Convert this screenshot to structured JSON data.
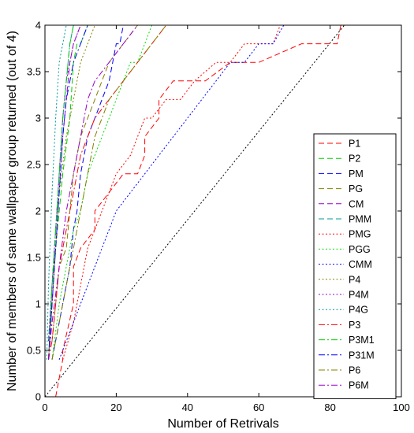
{
  "chart_data": {
    "type": "line",
    "title": "",
    "xlabel": "Number of Retrivals",
    "ylabel": "Number of members of same wallpaper group returned (out of 4)",
    "xlim": [
      0,
      100
    ],
    "ylim": [
      0,
      4
    ],
    "x_ticks": [
      0,
      20,
      40,
      60,
      80,
      100
    ],
    "y_ticks": [
      0,
      0.5,
      1,
      1.5,
      2,
      2.5,
      3,
      3.5,
      4
    ],
    "x_tick_labels": [
      "0",
      "20",
      "40",
      "60",
      "80",
      "100"
    ],
    "y_tick_labels": [
      "0",
      "0.5",
      "1",
      "1.5",
      "2",
      "2.5",
      "3",
      "3.5",
      "4"
    ],
    "grid": false,
    "legend_position": "right",
    "reference_line": {
      "x": [
        0,
        84
      ],
      "y": [
        0,
        4
      ],
      "color": "#000000",
      "style": "dotted"
    },
    "series": [
      {
        "name": "P1",
        "color": "#ff0000",
        "style": "dashed",
        "x": [
          3,
          5,
          5,
          8,
          8,
          10,
          10,
          14,
          14,
          18,
          18,
          22,
          22,
          26,
          26,
          28,
          28,
          32,
          32,
          36,
          36,
          45,
          45,
          52,
          52,
          60,
          60,
          72,
          72,
          82,
          82,
          83
        ],
        "y": [
          0,
          0.4,
          0.5,
          1,
          1.4,
          1.6,
          1.6,
          1.8,
          2.0,
          2.2,
          2.2,
          2.4,
          2.4,
          2.4,
          2.4,
          2.6,
          2.8,
          3.0,
          3.2,
          3.4,
          3.4,
          3.4,
          3.4,
          3.6,
          3.6,
          3.6,
          3.6,
          3.8,
          3.8,
          3.8,
          3.8,
          4.0
        ]
      },
      {
        "name": "P2",
        "color": "#00cc00",
        "style": "dashed",
        "x": [
          1,
          2,
          3,
          4,
          5,
          7,
          8,
          9,
          10,
          12,
          14
        ],
        "y": [
          0.4,
          1.2,
          1.6,
          2.0,
          2.4,
          3.0,
          3.6,
          3.8,
          3.8,
          4.0,
          4.0
        ]
      },
      {
        "name": "PM",
        "color": "#0000ff",
        "style": "dashed",
        "x": [
          2,
          4,
          5,
          7,
          8,
          9,
          10,
          11,
          12,
          14,
          16,
          18,
          19,
          20,
          21,
          22,
          24
        ],
        "y": [
          0.4,
          0.8,
          1.0,
          1.4,
          1.8,
          2.0,
          2.4,
          2.6,
          2.8,
          3.0,
          3.2,
          3.4,
          3.6,
          3.8,
          3.8,
          4.0,
          4.0
        ]
      },
      {
        "name": "PG",
        "color": "#808000",
        "style": "dashed",
        "x": [
          2,
          3,
          4,
          6,
          7,
          8,
          10,
          12,
          14,
          16,
          18,
          22,
          26,
          30
        ],
        "y": [
          0.6,
          1.0,
          1.4,
          1.6,
          2.0,
          2.4,
          2.8,
          3.0,
          3.2,
          3.4,
          3.6,
          3.8,
          4.0,
          4.0
        ]
      },
      {
        "name": "CM",
        "color": "#9900cc",
        "style": "dashed",
        "x": [
          1,
          2,
          3,
          4,
          5,
          6,
          7,
          8,
          10,
          12
        ],
        "y": [
          0.4,
          1.0,
          1.6,
          2.2,
          2.8,
          3.2,
          3.6,
          3.8,
          4.0,
          4.0
        ]
      },
      {
        "name": "PMM",
        "color": "#009999",
        "style": "dashed",
        "x": [
          1,
          2,
          3,
          4,
          5,
          6,
          7,
          8,
          9
        ],
        "y": [
          0.6,
          1.2,
          1.8,
          2.4,
          3.0,
          3.4,
          3.8,
          4.0,
          4.0
        ]
      },
      {
        "name": "PMG",
        "color": "#ff0000",
        "style": "dotted",
        "x": [
          5,
          8,
          10,
          12,
          14,
          16,
          18,
          20,
          24,
          26,
          28,
          30,
          34,
          38,
          42,
          48,
          52,
          56,
          60,
          64,
          66,
          68
        ],
        "y": [
          0.4,
          0.8,
          1.2,
          1.6,
          1.8,
          2.0,
          2.2,
          2.4,
          2.6,
          2.8,
          3.0,
          3.0,
          3.2,
          3.2,
          3.4,
          3.6,
          3.6,
          3.8,
          3.8,
          3.8,
          4.0,
          4.0
        ]
      },
      {
        "name": "PGG",
        "color": "#00dd00",
        "style": "dotted",
        "x": [
          2,
          4,
          6,
          8,
          10,
          12,
          14,
          16,
          18,
          20,
          22,
          24,
          26,
          28,
          30,
          34
        ],
        "y": [
          0.4,
          1.0,
          1.4,
          1.8,
          2.0,
          2.4,
          2.6,
          2.8,
          3.0,
          3.2,
          3.4,
          3.6,
          3.6,
          3.8,
          4.0,
          4.0
        ]
      },
      {
        "name": "CMM",
        "color": "#0000ff",
        "style": "dotted",
        "x": [
          4,
          8,
          10,
          12,
          14,
          16,
          18,
          20,
          24,
          28,
          32,
          36,
          40,
          44,
          48,
          52,
          56,
          60,
          64,
          67,
          68
        ],
        "y": [
          0.4,
          0.8,
          1.0,
          1.2,
          1.4,
          1.6,
          1.8,
          2.0,
          2.2,
          2.4,
          2.6,
          2.8,
          3.0,
          3.2,
          3.4,
          3.6,
          3.6,
          3.8,
          3.8,
          4.0,
          4.0
        ]
      },
      {
        "name": "P4",
        "color": "#808000",
        "style": "dotted",
        "x": [
          1,
          2,
          3,
          4,
          6,
          8,
          10,
          12,
          14,
          16
        ],
        "y": [
          0.4,
          1.0,
          1.6,
          2.2,
          2.8,
          3.2,
          3.6,
          3.8,
          4.0,
          4.0
        ]
      },
      {
        "name": "P4M",
        "color": "#9900cc",
        "style": "dotted",
        "x": [
          1,
          2,
          3,
          4,
          5,
          6,
          7,
          8,
          10,
          12
        ],
        "y": [
          0.6,
          1.2,
          1.8,
          2.4,
          3.0,
          3.4,
          3.6,
          3.8,
          4.0,
          4.0
        ]
      },
      {
        "name": "P4G",
        "color": "#009999",
        "style": "dotted",
        "x": [
          0.5,
          1,
          2,
          3,
          4,
          5,
          6,
          7,
          8
        ],
        "y": [
          0.4,
          1.2,
          2.2,
          3.0,
          3.6,
          3.8,
          4.0,
          4.0,
          4.0
        ]
      },
      {
        "name": "P3",
        "color": "#ff0000",
        "style": "dashdot",
        "x": [
          1,
          2,
          3,
          4,
          6,
          8,
          10,
          14,
          18,
          22,
          26,
          30,
          34,
          38
        ],
        "y": [
          0.4,
          0.6,
          1.0,
          1.4,
          1.8,
          2.2,
          2.6,
          3.0,
          3.2,
          3.4,
          3.6,
          3.8,
          4.0,
          4.0
        ]
      },
      {
        "name": "P3M1",
        "color": "#00cc00",
        "style": "dashdot",
        "x": [
          1,
          2,
          3,
          4,
          5,
          6,
          7,
          8,
          9,
          10
        ],
        "y": [
          0.4,
          1.2,
          1.8,
          2.4,
          3.0,
          3.4,
          3.8,
          4.0,
          4.0,
          4.0
        ]
      },
      {
        "name": "P31M",
        "color": "#0000ff",
        "style": "dashdot",
        "x": [
          1,
          2,
          3,
          4,
          5,
          6,
          8,
          10,
          12,
          14
        ],
        "y": [
          0.4,
          1.0,
          1.6,
          2.2,
          2.8,
          3.2,
          3.6,
          3.8,
          4.0,
          4.0
        ]
      },
      {
        "name": "P6",
        "color": "#808000",
        "style": "dashdot",
        "x": [
          2,
          4,
          6,
          8,
          10,
          12,
          14,
          18,
          22,
          26,
          30,
          34,
          38
        ],
        "y": [
          0.4,
          0.8,
          1.2,
          1.6,
          2.0,
          2.4,
          2.8,
          3.2,
          3.4,
          3.6,
          3.8,
          4.0,
          4.0
        ]
      },
      {
        "name": "P6M",
        "color": "#9900cc",
        "style": "dashdot",
        "x": [
          1,
          2,
          4,
          6,
          8,
          10,
          12,
          14,
          18,
          22,
          26,
          30
        ],
        "y": [
          0.4,
          0.8,
          1.4,
          2.0,
          2.4,
          2.8,
          3.2,
          3.4,
          3.6,
          3.8,
          4.0,
          4.0
        ]
      }
    ]
  }
}
